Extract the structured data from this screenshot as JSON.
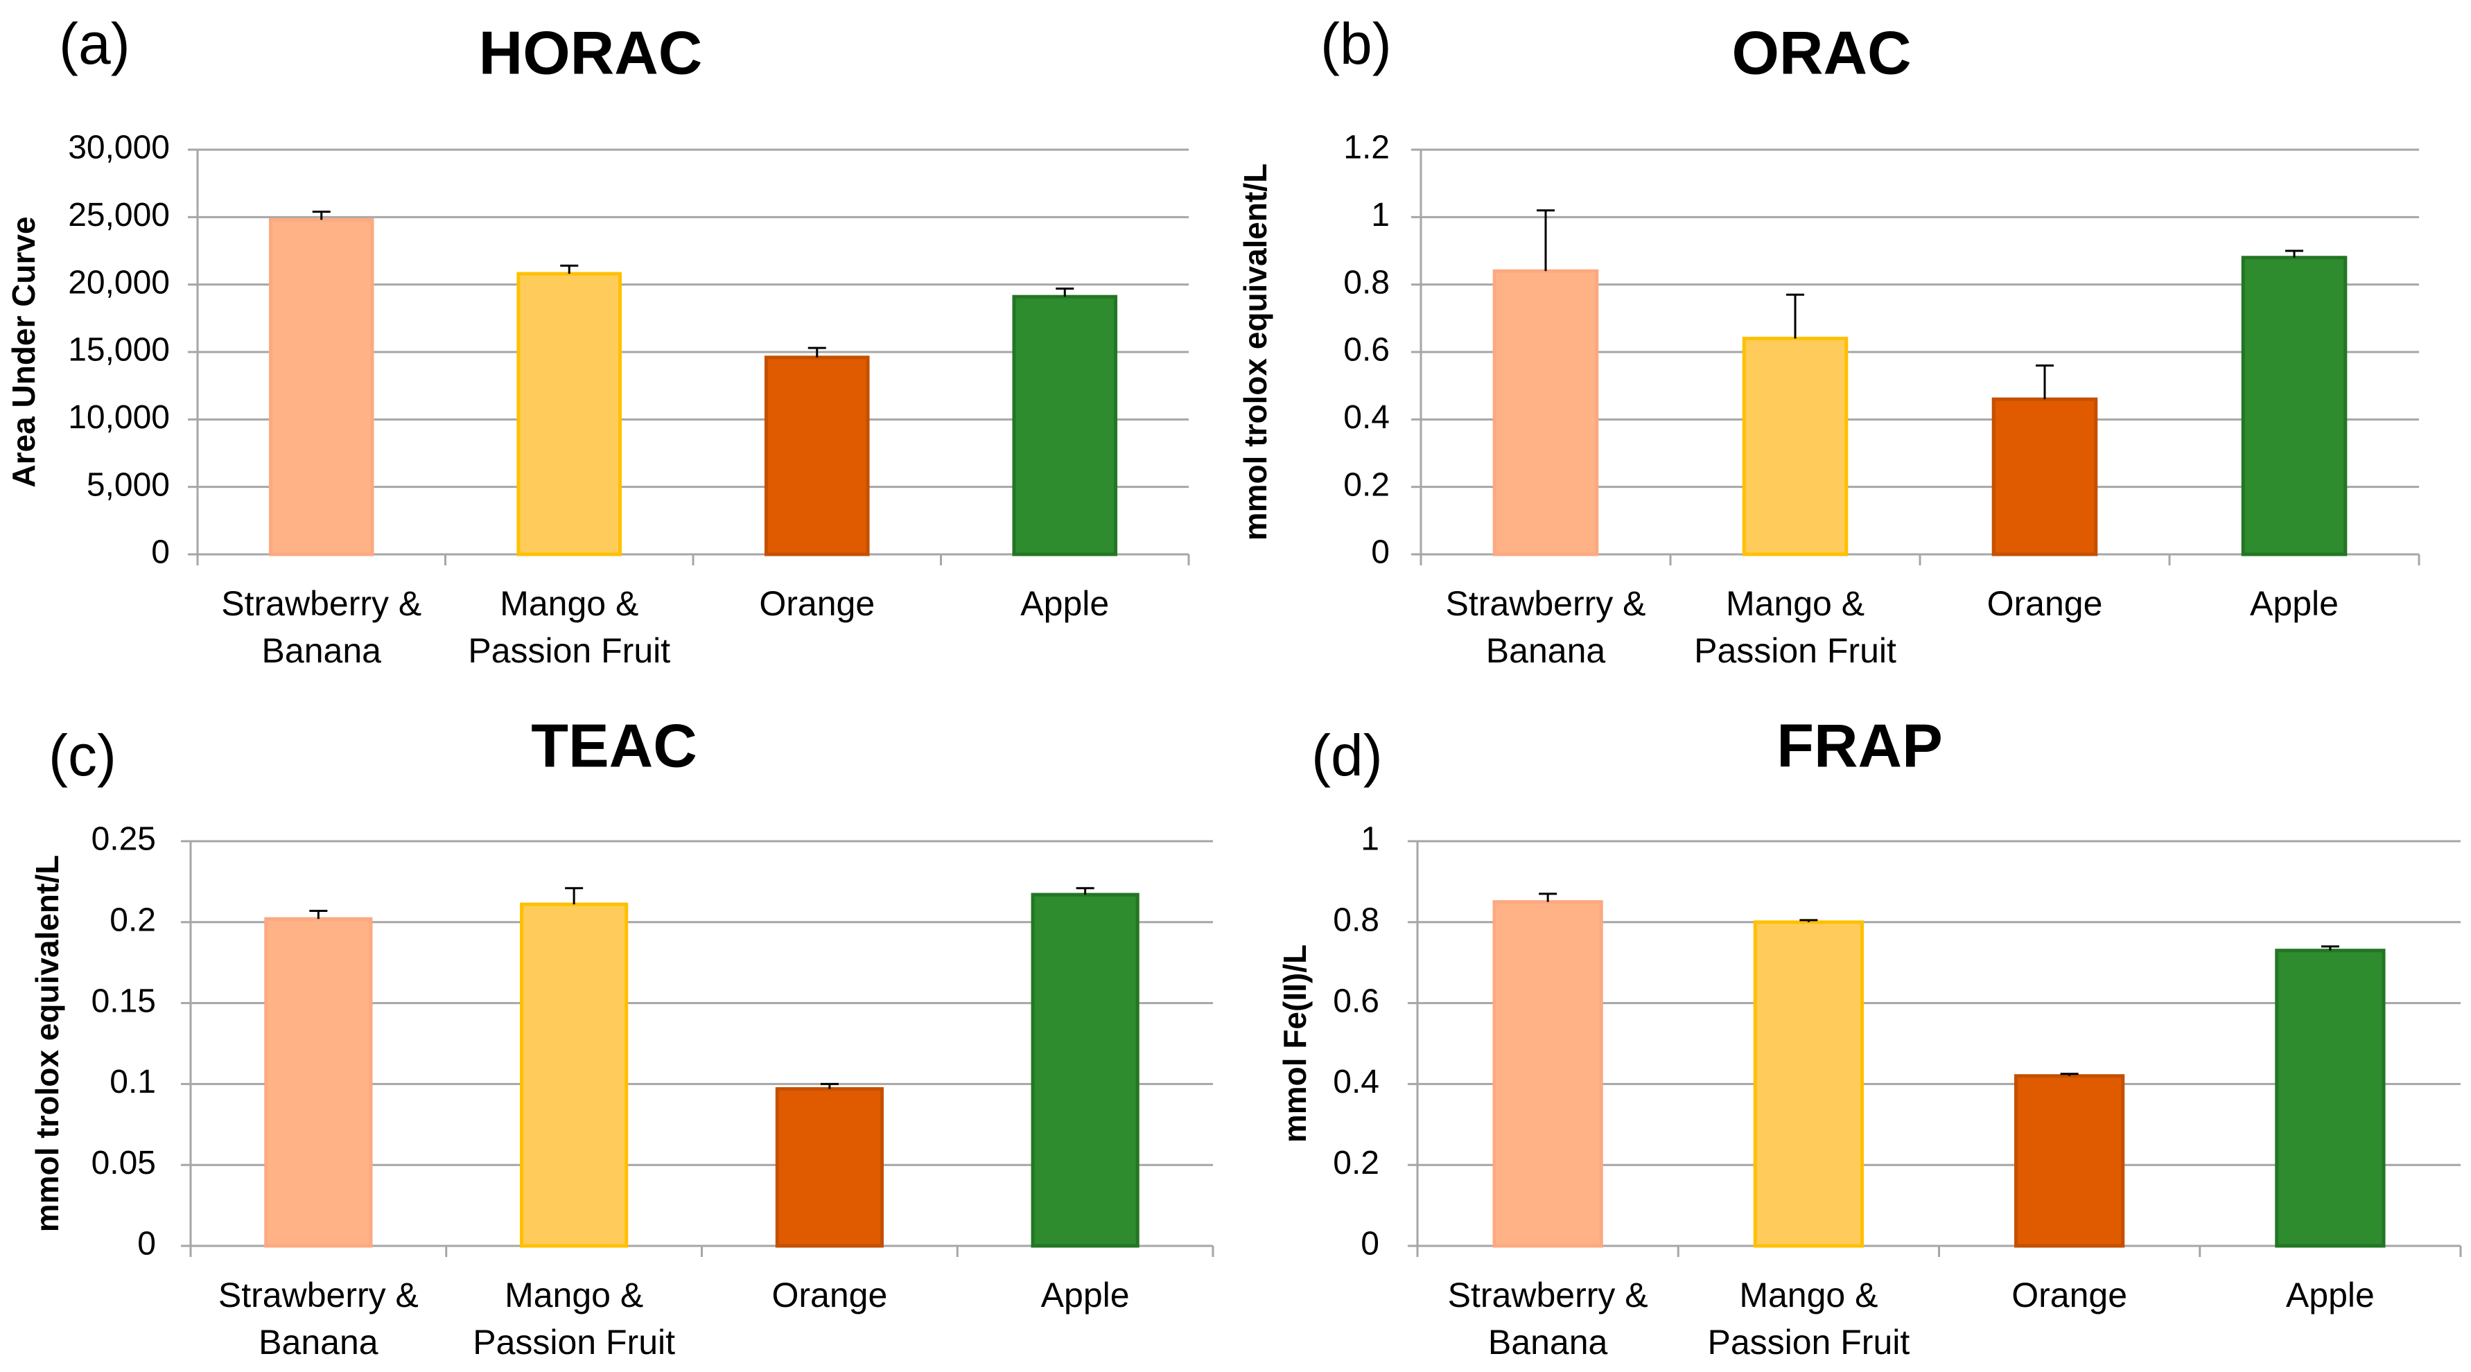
{
  "colors": {
    "strawberry_banana": "#FFB286",
    "strawberry_banana_edge": "#FCA982",
    "mango_passion": "#FFCC5C",
    "mango_passion_edge": "#FFC000",
    "orange": "#E05A00",
    "orange_edge": "#C45000",
    "apple": "#2E8B2E",
    "apple_edge": "#237623",
    "gridline": "#A6A6A6",
    "text": "#000000"
  },
  "chart_data": [
    {
      "panel_label": "(a)",
      "type": "bar",
      "title": "HORAC",
      "xlabel": "",
      "ylabel": "Area Under Curve",
      "categories": [
        [
          "Strawberry &",
          "Banana"
        ],
        [
          "Mango &",
          "Passion Fruit"
        ],
        [
          "Orange"
        ],
        [
          "Apple"
        ]
      ],
      "values": [
        24800,
        20800,
        14600,
        19100
      ],
      "errors": [
        600,
        600,
        700,
        600
      ],
      "ylim": [
        0,
        30000
      ],
      "yticks": [
        0,
        5000,
        10000,
        15000,
        20000,
        25000,
        30000
      ],
      "ytick_labels": [
        "0",
        "5,000",
        "10,000",
        "15,000",
        "20,000",
        "25,000",
        "30,000"
      ],
      "grid": true,
      "legend": "none"
    },
    {
      "panel_label": "(b)",
      "type": "bar",
      "title": "ORAC",
      "xlabel": "",
      "ylabel": "mmol trolox equivalent/L",
      "categories": [
        [
          "Strawberry &",
          "Banana"
        ],
        [
          "Mango &",
          "Passion Fruit"
        ],
        [
          "Orange"
        ],
        [
          "Apple"
        ]
      ],
      "values": [
        0.84,
        0.64,
        0.46,
        0.88
      ],
      "errors": [
        0.18,
        0.13,
        0.1,
        0.02
      ],
      "ylim": [
        0,
        1.2
      ],
      "yticks": [
        0,
        0.2,
        0.4,
        0.6,
        0.8,
        1,
        1.2
      ],
      "ytick_labels": [
        "0",
        "0.2",
        "0.4",
        "0.6",
        "0.8",
        "1",
        "1.2"
      ],
      "grid": true,
      "legend": "none"
    },
    {
      "panel_label": "(c)",
      "type": "bar",
      "title": "TEAC",
      "xlabel": "",
      "ylabel": "mmol trolox equivalent/L",
      "categories": [
        [
          "Strawberry &",
          "Banana"
        ],
        [
          "Mango &",
          "Passion Fruit"
        ],
        [
          "Orange"
        ],
        [
          "Apple"
        ]
      ],
      "values": [
        0.202,
        0.211,
        0.097,
        0.217
      ],
      "errors": [
        0.005,
        0.01,
        0.003,
        0.004
      ],
      "ylim": [
        0,
        0.25
      ],
      "yticks": [
        0,
        0.05,
        0.1,
        0.15,
        0.2,
        0.25
      ],
      "ytick_labels": [
        "0",
        "0.05",
        "0.1",
        "0.15",
        "0.2",
        "0.25"
      ],
      "grid": true,
      "legend": "none"
    },
    {
      "panel_label": "(d)",
      "type": "bar",
      "title": "FRAP",
      "xlabel": "",
      "ylabel": "mmol Fe(II)/L",
      "categories": [
        [
          "Strawberry &",
          "Banana"
        ],
        [
          "Mango &",
          "Passion Fruit"
        ],
        [
          "Orange"
        ],
        [
          "Apple"
        ]
      ],
      "values": [
        0.85,
        0.8,
        0.42,
        0.73
      ],
      "errors": [
        0.02,
        0.005,
        0.005,
        0.01
      ],
      "ylim": [
        0,
        1
      ],
      "yticks": [
        0,
        0.2,
        0.4,
        0.6,
        0.8,
        1
      ],
      "ytick_labels": [
        "0",
        "0.2",
        "0.4",
        "0.6",
        "0.8",
        "1"
      ],
      "grid": true,
      "legend": "none"
    }
  ]
}
